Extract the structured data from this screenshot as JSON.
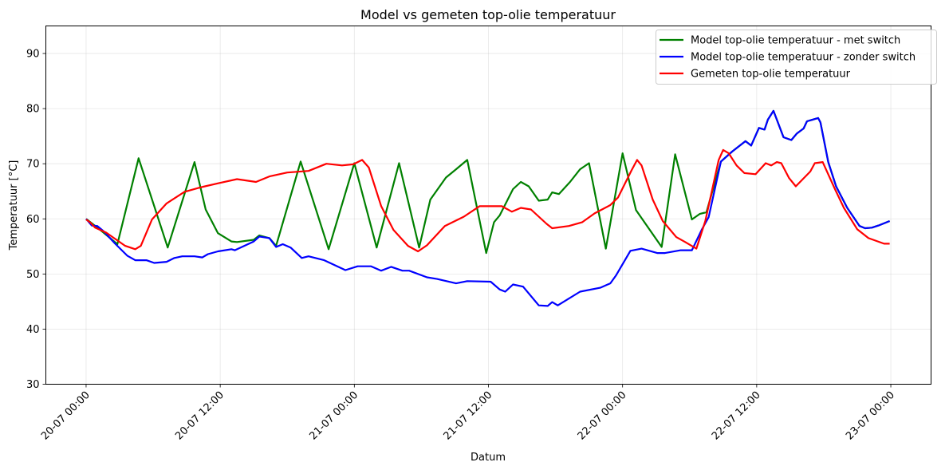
{
  "chart_data": {
    "type": "line",
    "title": "Model vs gemeten top-olie temperatuur",
    "xlabel": "Datum",
    "ylabel": "Temperatuur [°C]",
    "x_unit": "hours since 20-07 00:00",
    "xlim": [
      -3.6,
      75.6
    ],
    "ylim": [
      30,
      95
    ],
    "x_ticks": [
      0,
      12,
      24,
      36,
      48,
      60,
      72
    ],
    "x_tick_labels": [
      "20-07 00:00",
      "20-07 12:00",
      "21-07 00:00",
      "21-07 12:00",
      "22-07 00:00",
      "22-07 12:00",
      "23-07 00:00"
    ],
    "y_ticks": [
      30,
      40,
      50,
      60,
      70,
      80,
      90
    ],
    "y_tick_labels": [
      "30",
      "40",
      "50",
      "60",
      "70",
      "80",
      "90"
    ],
    "grid": true,
    "legend_position": "top-right",
    "series": [
      {
        "name": "Model top-olie temperatuur - met switch",
        "color": "#008000",
        "points": [
          [
            0,
            60.0
          ],
          [
            1.2,
            58.1
          ],
          [
            2.8,
            55.4
          ],
          [
            4.7,
            71.0
          ],
          [
            7.3,
            54.8
          ],
          [
            9.7,
            70.3
          ],
          [
            10.7,
            61.7
          ],
          [
            11.8,
            57.4
          ],
          [
            13.0,
            55.9
          ],
          [
            13.5,
            55.8
          ],
          [
            15.0,
            56.2
          ],
          [
            15.5,
            57.0
          ],
          [
            16.4,
            56.5
          ],
          [
            17.0,
            55.1
          ],
          [
            19.2,
            70.4
          ],
          [
            21.7,
            54.5
          ],
          [
            24.0,
            70.1
          ],
          [
            26.0,
            54.8
          ],
          [
            28.0,
            70.1
          ],
          [
            29.8,
            54.8
          ],
          [
            30.8,
            63.5
          ],
          [
            32.2,
            67.5
          ],
          [
            33.1,
            69.0
          ],
          [
            34.1,
            70.7
          ],
          [
            35.8,
            53.8
          ],
          [
            36.5,
            59.4
          ],
          [
            37.0,
            60.6
          ],
          [
            38.2,
            65.4
          ],
          [
            38.9,
            66.7
          ],
          [
            39.6,
            65.9
          ],
          [
            40.5,
            63.3
          ],
          [
            41.3,
            63.5
          ],
          [
            41.7,
            64.8
          ],
          [
            42.3,
            64.5
          ],
          [
            43.3,
            66.7
          ],
          [
            44.2,
            69.0
          ],
          [
            45.0,
            70.1
          ],
          [
            46.5,
            54.6
          ],
          [
            48.0,
            71.9
          ],
          [
            49.2,
            61.6
          ],
          [
            51.5,
            54.9
          ],
          [
            52.7,
            71.7
          ],
          [
            54.2,
            59.9
          ],
          [
            54.9,
            60.9
          ],
          [
            55.5,
            61.2
          ],
          [
            56.8,
            70.4
          ],
          [
            57.8,
            72.2
          ],
          [
            59.0,
            74.1
          ],
          [
            59.5,
            73.3
          ],
          [
            60.2,
            76.5
          ],
          [
            60.7,
            76.2
          ],
          [
            61.0,
            78.0
          ],
          [
            61.5,
            79.6
          ],
          [
            62.4,
            74.8
          ],
          [
            63.1,
            74.3
          ],
          [
            63.6,
            75.5
          ],
          [
            64.2,
            76.4
          ],
          [
            64.5,
            77.7
          ],
          [
            65.5,
            78.3
          ],
          [
            65.7,
            77.5
          ],
          [
            66.4,
            70.3
          ],
          [
            67.1,
            65.9
          ],
          [
            68.1,
            62.0
          ],
          [
            69.2,
            58.7
          ],
          [
            69.7,
            58.3
          ],
          [
            70.3,
            58.4
          ],
          [
            70.9,
            58.8
          ],
          [
            71.9,
            59.6
          ]
        ]
      },
      {
        "name": "Model top-olie temperatuur - zonder switch",
        "color": "#0000ff",
        "points": [
          [
            0,
            60.0
          ],
          [
            0.5,
            58.8
          ],
          [
            1.0,
            58.7
          ],
          [
            1.6,
            57.7
          ],
          [
            2.6,
            55.5
          ],
          [
            3.7,
            53.3
          ],
          [
            4.4,
            52.5
          ],
          [
            5.4,
            52.5
          ],
          [
            6.1,
            52.0
          ],
          [
            7.2,
            52.2
          ],
          [
            7.9,
            52.9
          ],
          [
            8.6,
            53.2
          ],
          [
            9.7,
            53.2
          ],
          [
            10.4,
            53.0
          ],
          [
            10.9,
            53.6
          ],
          [
            11.8,
            54.1
          ],
          [
            13.0,
            54.5
          ],
          [
            13.3,
            54.3
          ],
          [
            15.0,
            55.9
          ],
          [
            15.5,
            56.8
          ],
          [
            16.4,
            56.5
          ],
          [
            17.0,
            54.9
          ],
          [
            17.6,
            55.4
          ],
          [
            18.3,
            54.8
          ],
          [
            19.3,
            52.9
          ],
          [
            19.9,
            53.2
          ],
          [
            21.3,
            52.5
          ],
          [
            23.2,
            50.7
          ],
          [
            24.3,
            51.4
          ],
          [
            25.5,
            51.4
          ],
          [
            26.4,
            50.6
          ],
          [
            27.3,
            51.3
          ],
          [
            28.3,
            50.6
          ],
          [
            28.9,
            50.6
          ],
          [
            30.5,
            49.4
          ],
          [
            31.4,
            49.1
          ],
          [
            33.1,
            48.3
          ],
          [
            34.1,
            48.7
          ],
          [
            36.2,
            48.6
          ],
          [
            37.0,
            47.2
          ],
          [
            37.5,
            46.8
          ],
          [
            38.2,
            48.1
          ],
          [
            39.1,
            47.7
          ],
          [
            40.5,
            44.3
          ],
          [
            41.3,
            44.2
          ],
          [
            41.7,
            44.9
          ],
          [
            42.2,
            44.3
          ],
          [
            44.2,
            46.8
          ],
          [
            46.0,
            47.5
          ],
          [
            46.9,
            48.3
          ],
          [
            47.4,
            49.7
          ],
          [
            48.7,
            54.2
          ],
          [
            49.7,
            54.6
          ],
          [
            51.1,
            53.8
          ],
          [
            51.8,
            53.8
          ],
          [
            53.2,
            54.3
          ],
          [
            54.2,
            54.3
          ],
          [
            55.1,
            58.1
          ],
          [
            55.7,
            60.3
          ],
          [
            56.8,
            70.4
          ],
          [
            57.8,
            72.2
          ],
          [
            59.0,
            74.1
          ],
          [
            59.5,
            73.3
          ],
          [
            60.2,
            76.5
          ],
          [
            60.7,
            76.2
          ],
          [
            61.0,
            78.0
          ],
          [
            61.5,
            79.6
          ],
          [
            62.4,
            74.8
          ],
          [
            63.1,
            74.3
          ],
          [
            63.6,
            75.5
          ],
          [
            64.2,
            76.4
          ],
          [
            64.5,
            77.7
          ],
          [
            65.5,
            78.3
          ],
          [
            65.7,
            77.5
          ],
          [
            66.4,
            70.3
          ],
          [
            67.1,
            65.9
          ],
          [
            68.1,
            62.0
          ],
          [
            69.2,
            58.7
          ],
          [
            69.7,
            58.3
          ],
          [
            70.3,
            58.4
          ],
          [
            70.9,
            58.8
          ],
          [
            71.9,
            59.6
          ]
        ]
      },
      {
        "name": "Gemeten top-olie temperatuur",
        "color": "#ff0000",
        "points": [
          [
            0,
            59.9
          ],
          [
            0.4,
            59.3
          ],
          [
            0.8,
            58.4
          ],
          [
            1.8,
            57.5
          ],
          [
            2.5,
            56.5
          ],
          [
            3.5,
            55.1
          ],
          [
            4.4,
            54.5
          ],
          [
            4.9,
            55.1
          ],
          [
            5.9,
            59.9
          ],
          [
            7.2,
            62.8
          ],
          [
            8.8,
            64.9
          ],
          [
            10.2,
            65.7
          ],
          [
            11.9,
            66.5
          ],
          [
            13.5,
            67.2
          ],
          [
            15.2,
            66.7
          ],
          [
            16.4,
            67.7
          ],
          [
            18.0,
            68.4
          ],
          [
            19.9,
            68.7
          ],
          [
            21.5,
            70.0
          ],
          [
            22.9,
            69.7
          ],
          [
            23.9,
            69.9
          ],
          [
            24.7,
            70.7
          ],
          [
            25.3,
            69.3
          ],
          [
            26.4,
            62.3
          ],
          [
            27.5,
            58.0
          ],
          [
            28.8,
            55.1
          ],
          [
            29.7,
            54.1
          ],
          [
            30.5,
            55.2
          ],
          [
            32.1,
            58.7
          ],
          [
            33.8,
            60.4
          ],
          [
            35.2,
            62.3
          ],
          [
            37.2,
            62.3
          ],
          [
            38.1,
            61.3
          ],
          [
            38.9,
            62.0
          ],
          [
            39.8,
            61.7
          ],
          [
            41.2,
            59.1
          ],
          [
            41.7,
            58.3
          ],
          [
            43.2,
            58.7
          ],
          [
            44.4,
            59.4
          ],
          [
            45.5,
            61.0
          ],
          [
            46.9,
            62.5
          ],
          [
            47.6,
            63.9
          ],
          [
            48.8,
            68.8
          ],
          [
            49.3,
            70.7
          ],
          [
            49.7,
            69.7
          ],
          [
            50.7,
            63.5
          ],
          [
            51.6,
            59.6
          ],
          [
            52.8,
            56.7
          ],
          [
            53.6,
            55.8
          ],
          [
            54.6,
            54.6
          ],
          [
            55.4,
            59.6
          ],
          [
            56.6,
            70.7
          ],
          [
            57.0,
            72.5
          ],
          [
            57.5,
            71.9
          ],
          [
            58.2,
            69.7
          ],
          [
            58.9,
            68.3
          ],
          [
            59.9,
            68.1
          ],
          [
            60.8,
            70.1
          ],
          [
            61.3,
            69.7
          ],
          [
            61.8,
            70.3
          ],
          [
            62.2,
            70.1
          ],
          [
            62.9,
            67.4
          ],
          [
            63.5,
            65.9
          ],
          [
            64.8,
            68.6
          ],
          [
            65.2,
            70.1
          ],
          [
            65.9,
            70.3
          ],
          [
            67.0,
            65.4
          ],
          [
            67.8,
            62.0
          ],
          [
            69.0,
            58.1
          ],
          [
            70.0,
            56.5
          ],
          [
            71.4,
            55.5
          ],
          [
            71.9,
            55.5
          ]
        ]
      }
    ]
  }
}
